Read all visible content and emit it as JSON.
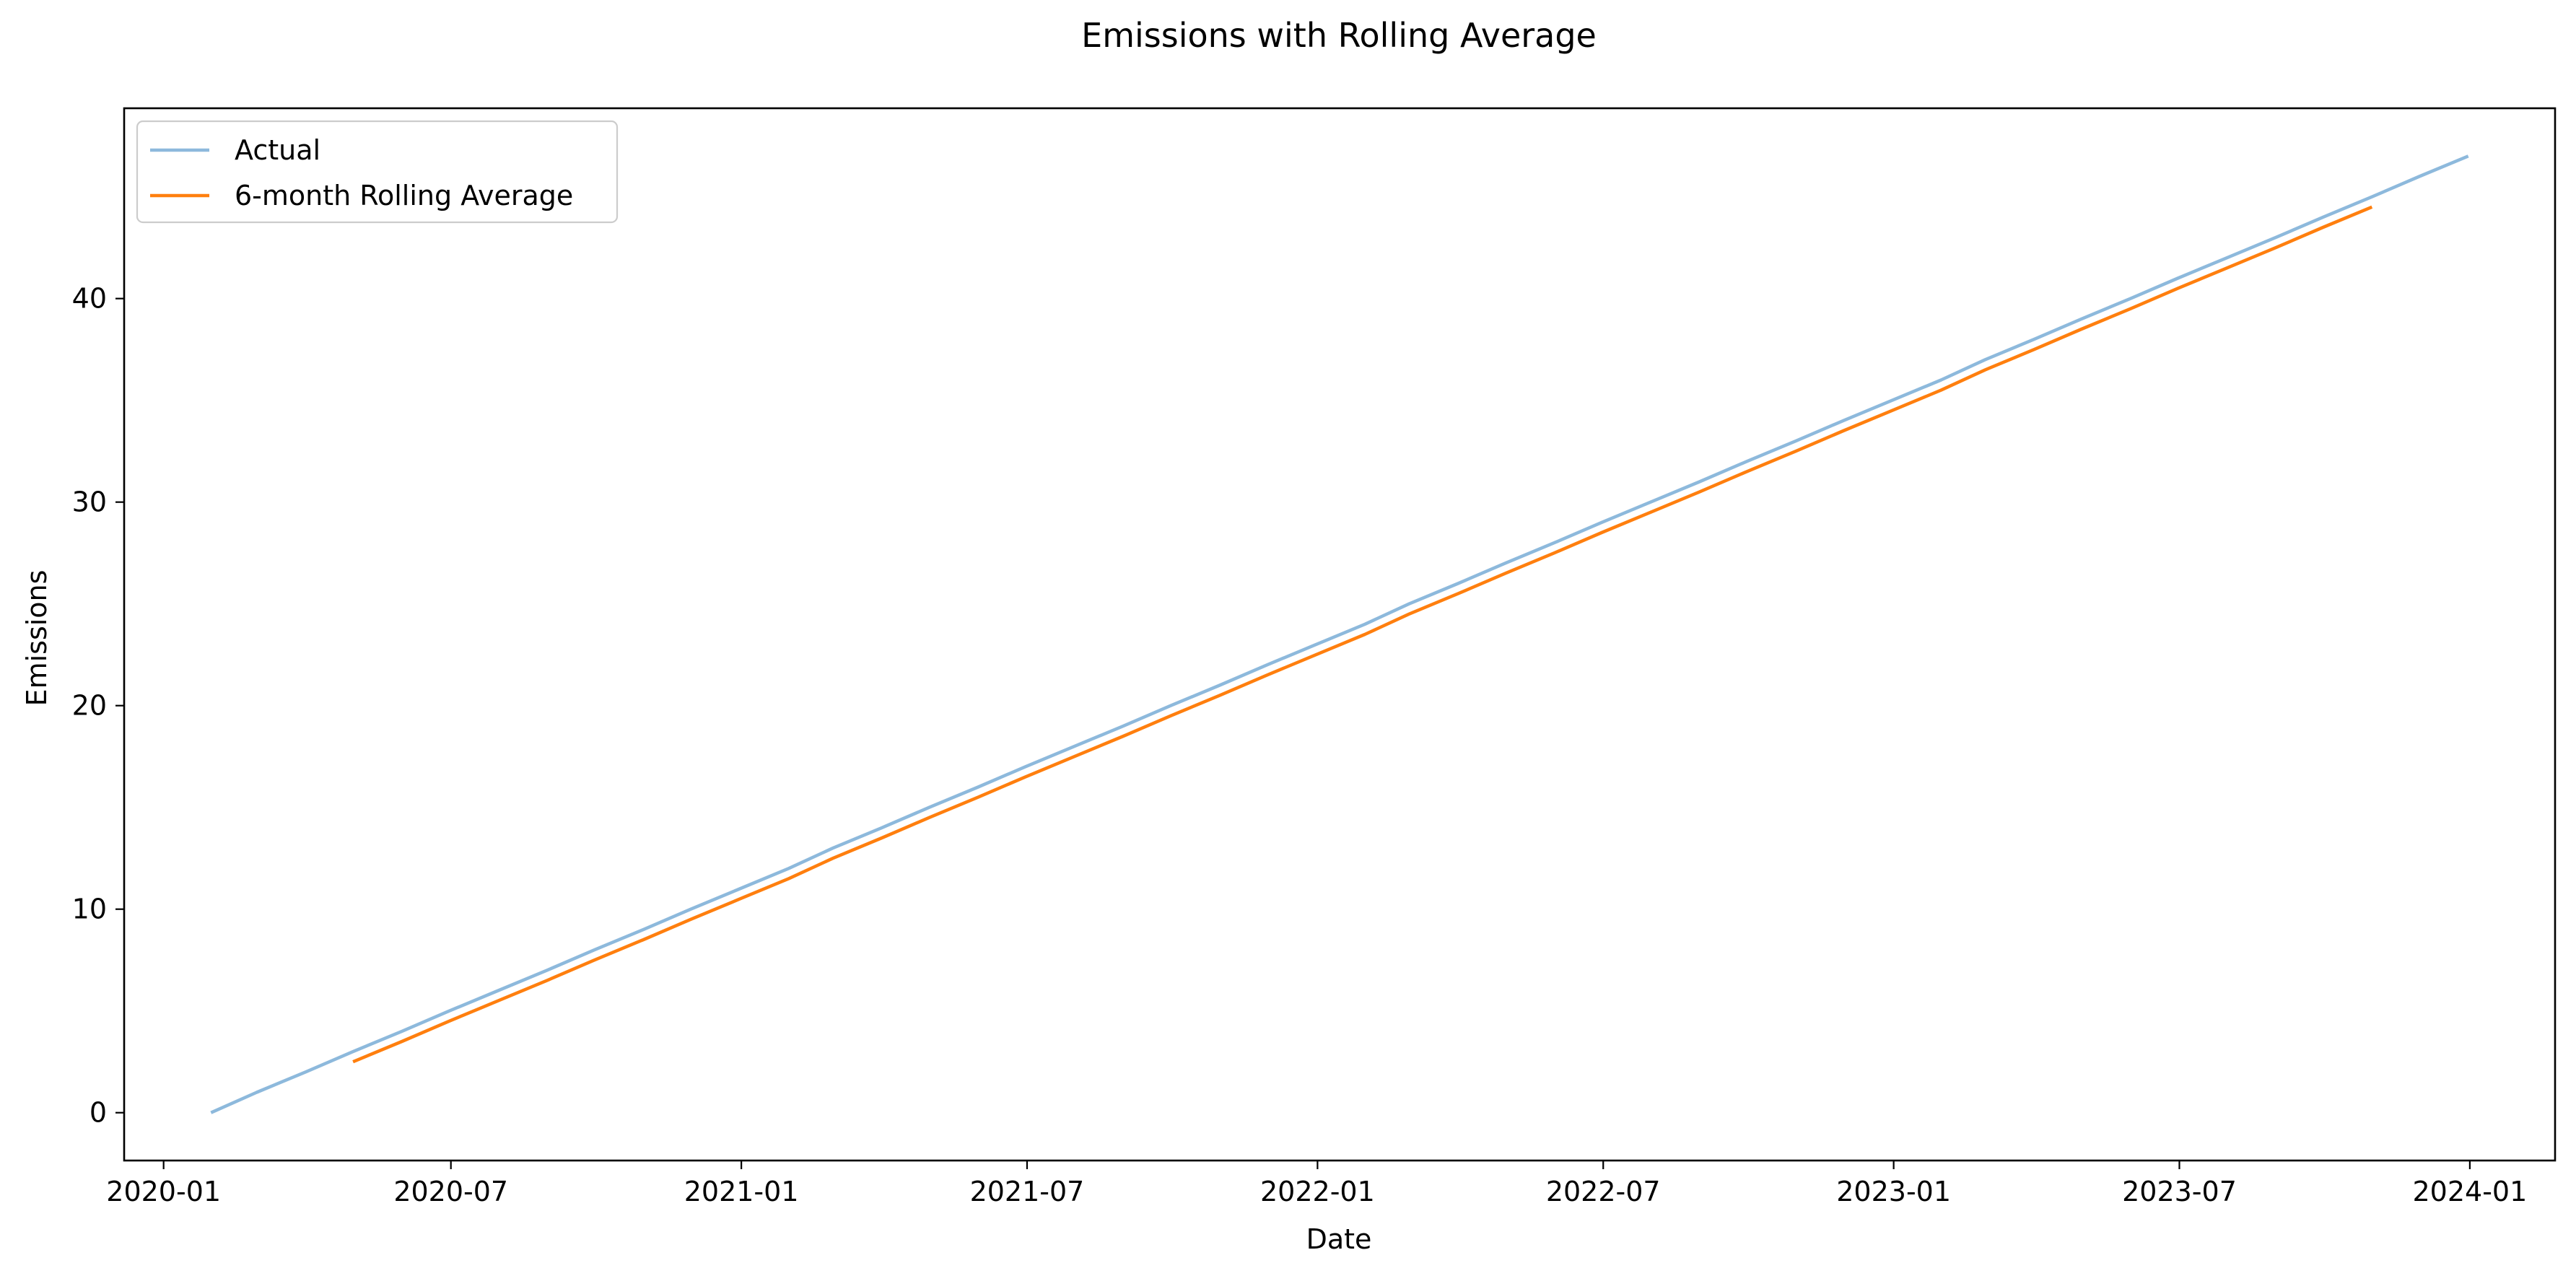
{
  "chart_data": {
    "type": "line",
    "title": "Emissions with Rolling Average",
    "xlabel": "Date",
    "ylabel": "Emissions",
    "x_ticks": [
      "2020-01",
      "2020-07",
      "2021-01",
      "2021-07",
      "2022-01",
      "2022-07",
      "2023-01",
      "2023-07",
      "2024-01"
    ],
    "y_ticks": [
      "0",
      "10",
      "20",
      "30",
      "40"
    ],
    "xlim": [
      "2019-12-07",
      "2024-02-24"
    ],
    "ylim": [
      -2.35,
      49.35
    ],
    "legend_position": "top-left",
    "grid": false,
    "series": [
      {
        "name": "Actual",
        "color": "#8db9dc",
        "x": [
          "2020-01-31",
          "2020-02-29",
          "2020-03-31",
          "2020-04-30",
          "2020-05-31",
          "2020-06-30",
          "2020-07-31",
          "2020-08-31",
          "2020-09-30",
          "2020-10-31",
          "2020-11-30",
          "2020-12-31",
          "2021-01-31",
          "2021-02-28",
          "2021-03-31",
          "2021-04-30",
          "2021-05-31",
          "2021-06-30",
          "2021-07-31",
          "2021-08-31",
          "2021-09-30",
          "2021-10-31",
          "2021-11-30",
          "2021-12-31",
          "2022-01-31",
          "2022-02-28",
          "2022-03-31",
          "2022-04-30",
          "2022-05-31",
          "2022-06-30",
          "2022-07-31",
          "2022-08-31",
          "2022-09-30",
          "2022-10-31",
          "2022-11-30",
          "2022-12-31",
          "2023-01-31",
          "2023-02-28",
          "2023-03-31",
          "2023-04-30",
          "2023-05-31",
          "2023-06-30",
          "2023-07-31",
          "2023-08-31",
          "2023-09-30",
          "2023-10-31",
          "2023-11-30",
          "2023-12-31"
        ],
        "values": [
          0,
          1,
          2,
          3,
          4,
          5,
          6,
          7,
          8,
          9,
          10,
          11,
          12,
          13,
          14,
          15,
          16,
          17,
          18,
          19,
          20,
          21,
          22,
          23,
          24,
          25,
          26,
          27,
          28,
          29,
          30,
          31,
          32,
          33,
          34,
          35,
          36,
          37,
          38,
          39,
          40,
          41,
          42,
          43,
          44,
          45,
          46,
          47
        ]
      },
      {
        "name": "6-month Rolling Average",
        "color": "#ff7f0e",
        "x": [
          "2020-04-30",
          "2020-05-31",
          "2020-06-30",
          "2020-07-31",
          "2020-08-31",
          "2020-09-30",
          "2020-10-31",
          "2020-11-30",
          "2020-12-31",
          "2021-01-31",
          "2021-02-28",
          "2021-03-31",
          "2021-04-30",
          "2021-05-31",
          "2021-06-30",
          "2021-07-31",
          "2021-08-31",
          "2021-09-30",
          "2021-10-31",
          "2021-11-30",
          "2021-12-31",
          "2022-01-31",
          "2022-02-28",
          "2022-03-31",
          "2022-04-30",
          "2022-05-31",
          "2022-06-30",
          "2022-07-31",
          "2022-08-31",
          "2022-09-30",
          "2022-10-31",
          "2022-11-30",
          "2022-12-31",
          "2023-01-31",
          "2023-02-28",
          "2023-03-31",
          "2023-04-30",
          "2023-05-31",
          "2023-06-30",
          "2023-07-31",
          "2023-08-31",
          "2023-09-30",
          "2023-10-31"
        ],
        "values": [
          2.5,
          3.5,
          4.5,
          5.5,
          6.5,
          7.5,
          8.5,
          9.5,
          10.5,
          11.5,
          12.5,
          13.5,
          14.5,
          15.5,
          16.5,
          17.5,
          18.5,
          19.5,
          20.5,
          21.5,
          22.5,
          23.5,
          24.5,
          25.5,
          26.5,
          27.5,
          28.5,
          29.5,
          30.5,
          31.5,
          32.5,
          33.5,
          34.5,
          35.5,
          36.5,
          37.5,
          38.5,
          39.5,
          40.5,
          41.5,
          42.5,
          43.5,
          44.5
        ]
      }
    ]
  }
}
